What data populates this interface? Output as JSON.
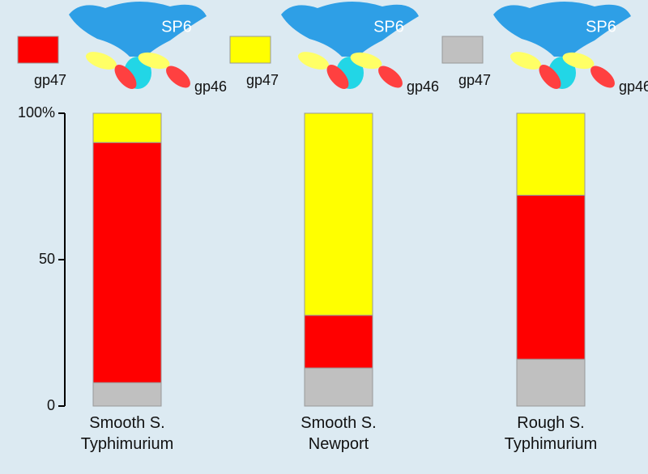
{
  "chart_data": {
    "type": "stacked_bar",
    "categories": [
      "Smooth S. Typhimurium",
      "Smooth S. Newport",
      "Rough S. Typhimurium"
    ],
    "series": [
      {
        "color": "#c0c0c0",
        "values": [
          8,
          13,
          16
        ]
      },
      {
        "color": "#ff0000",
        "values": [
          82,
          18,
          56
        ]
      },
      {
        "color": "#ffff00",
        "values": [
          10,
          69,
          28
        ]
      }
    ],
    "ylim": [
      0,
      100
    ],
    "yticks": [
      0,
      50,
      {
        "value": 100,
        "label": "100%"
      }
    ],
    "legend": [
      {
        "series": 1,
        "phage": "SP6",
        "labels": [
          "gp47",
          "gp46"
        ]
      },
      {
        "series": 2,
        "phage": "SP6",
        "labels": [
          "gp47",
          "gp46"
        ]
      },
      {
        "series": 0,
        "phage": "SP6",
        "labels": [
          "gp47",
          "gp46"
        ]
      }
    ]
  }
}
